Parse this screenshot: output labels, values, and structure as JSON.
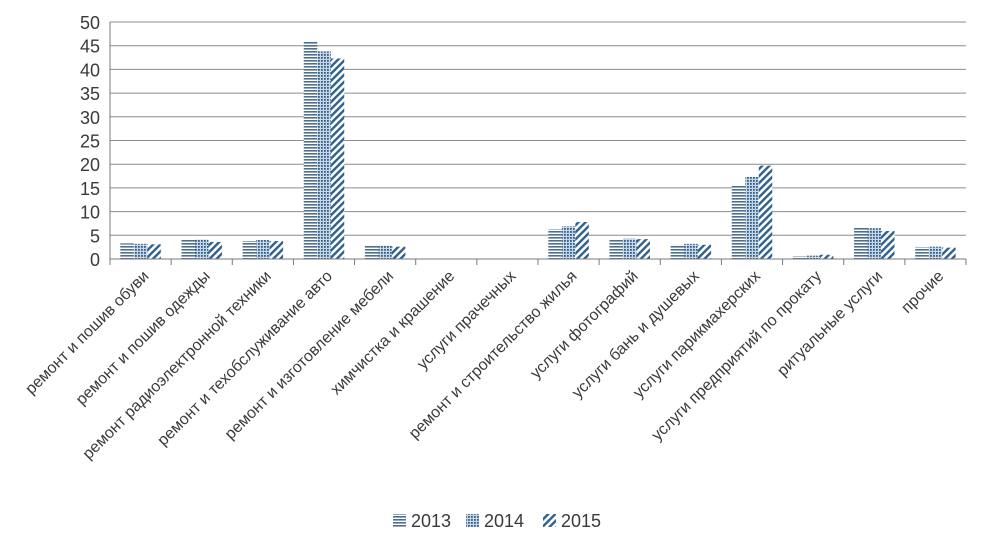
{
  "chart_data": {
    "type": "bar",
    "title": "",
    "xlabel": "",
    "ylabel": "",
    "ylim": [
      0,
      50
    ],
    "yticks": [
      0,
      5,
      10,
      15,
      20,
      25,
      30,
      35,
      40,
      45,
      50
    ],
    "grid": true,
    "legend_position": "bottom",
    "categories": [
      "ремонт и пошив обуви",
      "ремонт и пошив одежды",
      "ремонт радиоэлектронной техники",
      "ремонт и техобслуживание авто",
      "ремонт и изготовление мебели",
      "химчистка и крашение",
      "услуги прачечных",
      "ремонт и строительство жилья",
      "услуги фотографий",
      "услуги бань и душевых",
      "услуги парикмахерских",
      "услуги предприятий по прокату",
      "ритуальные услуги",
      "прочие"
    ],
    "series": [
      {
        "name": "2013",
        "pattern": "horizontal-lines",
        "color": "#4f6f8f",
        "values": [
          3.3,
          4.1,
          3.8,
          46.0,
          2.9,
          0,
          0,
          6.3,
          4.2,
          3.0,
          15.6,
          0.6,
          6.6,
          2.5
        ]
      },
      {
        "name": "2014",
        "pattern": "dots",
        "color": "#3b6a94",
        "values": [
          3.2,
          4.1,
          4.0,
          43.8,
          2.8,
          0,
          0,
          6.9,
          4.3,
          3.2,
          17.3,
          0.7,
          6.5,
          2.6
        ]
      },
      {
        "name": "2015",
        "pattern": "diagonal-lines",
        "color": "#2f5f8c",
        "values": [
          3.1,
          3.6,
          3.8,
          42.3,
          2.6,
          0,
          0,
          7.8,
          4.2,
          3.0,
          19.7,
          0.9,
          5.9,
          2.4
        ]
      }
    ]
  }
}
